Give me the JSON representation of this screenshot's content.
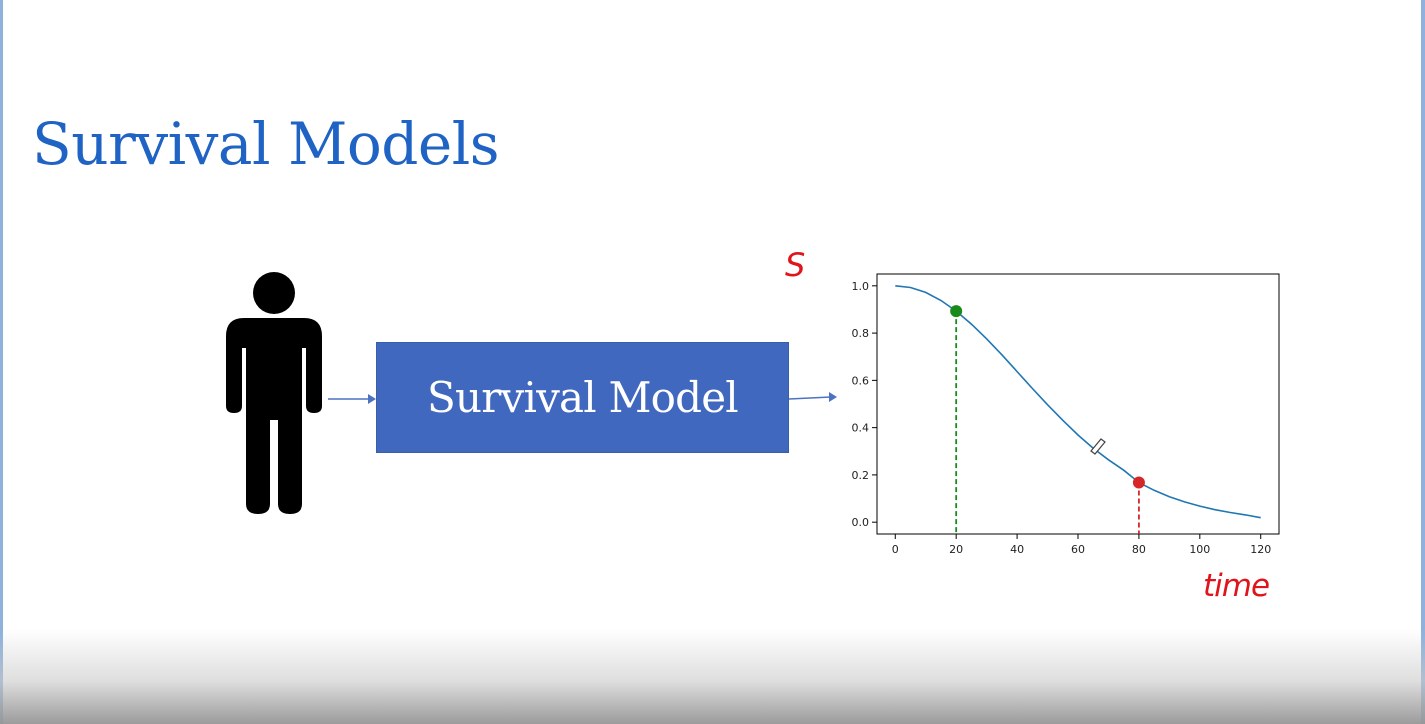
{
  "slide": {
    "title": "Survival Models"
  },
  "diagram": {
    "input_icon": "person-icon",
    "model_label": "Survival Model",
    "annotations": {
      "y_axis_handwritten": "S",
      "x_axis_handwritten": "time"
    }
  },
  "colors": {
    "title": "#1f63c4",
    "model_box": "#4168bf",
    "curve": "#1f77b4",
    "annotation": "#e0151b",
    "green_marker": "#1a8a1a",
    "red_marker": "#d62728"
  },
  "chart_data": {
    "type": "line",
    "title": "",
    "xlabel": "",
    "ylabel": "",
    "xlim": [
      -6,
      126
    ],
    "ylim": [
      -0.05,
      1.05
    ],
    "x_ticks": [
      0,
      20,
      40,
      60,
      80,
      100,
      120
    ],
    "y_ticks": [
      0.0,
      0.2,
      0.4,
      0.6,
      0.8,
      1.0
    ],
    "grid": false,
    "series": [
      {
        "x": [
          0,
          5,
          10,
          15,
          20,
          25,
          30,
          35,
          40,
          45,
          50,
          55,
          60,
          65,
          70,
          75,
          80,
          85,
          90,
          95,
          100,
          105,
          110,
          115,
          120
        ],
        "values": [
          1.0,
          0.993,
          0.972,
          0.938,
          0.893,
          0.838,
          0.776,
          0.708,
          0.637,
          0.566,
          0.497,
          0.431,
          0.369,
          0.313,
          0.264,
          0.22,
          0.168,
          0.135,
          0.108,
          0.086,
          0.068,
          0.053,
          0.041,
          0.031,
          0.019
        ]
      }
    ],
    "markers": [
      {
        "x": 20,
        "y": 0.893,
        "color": "green"
      },
      {
        "x": 80,
        "y": 0.168,
        "color": "red"
      }
    ]
  }
}
